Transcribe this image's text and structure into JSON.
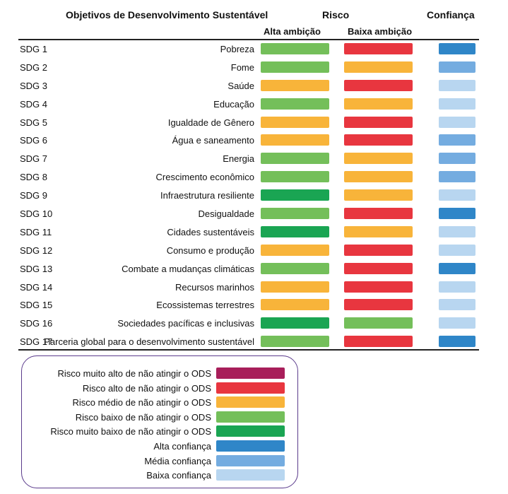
{
  "header": {
    "goals_title": "Objetivos de Desenvolvimento Sustentável",
    "risk_title": "Risco",
    "confidence_title": "Confiança",
    "high_ambition": "Alta ambição",
    "low_ambition": "Baixa ambição"
  },
  "colors": {
    "very_high": "#a81e5a",
    "high": "#e8363f",
    "medium": "#f8b43a",
    "low": "#74bf5a",
    "very_low": "#1aa553",
    "conf_high": "#2f86c8",
    "conf_medium": "#74ace0",
    "conf_low": "#b8d6f0"
  },
  "rows": [
    {
      "code": "SDG 1",
      "goal": "Pobreza",
      "alta": "low",
      "baixa": "high",
      "conf": "conf_high"
    },
    {
      "code": "SDG 2",
      "goal": "Fome",
      "alta": "low",
      "baixa": "medium",
      "conf": "conf_medium"
    },
    {
      "code": "SDG 3",
      "goal": "Saúde",
      "alta": "medium",
      "baixa": "high",
      "conf": "conf_low"
    },
    {
      "code": "SDG 4",
      "goal": "Educação",
      "alta": "low",
      "baixa": "medium",
      "conf": "conf_low"
    },
    {
      "code": "SDG 5",
      "goal": "Igualdade de Gênero",
      "alta": "medium",
      "baixa": "high",
      "conf": "conf_low"
    },
    {
      "code": "SDG 6",
      "goal": "Água e saneamento",
      "alta": "medium",
      "baixa": "high",
      "conf": "conf_medium"
    },
    {
      "code": "SDG 7",
      "goal": "Energia",
      "alta": "low",
      "baixa": "medium",
      "conf": "conf_medium"
    },
    {
      "code": "SDG 8",
      "goal": "Crescimento econômico",
      "alta": "low",
      "baixa": "medium",
      "conf": "conf_medium"
    },
    {
      "code": "SDG 9",
      "goal": "Infraestrutura resiliente",
      "alta": "very_low",
      "baixa": "medium",
      "conf": "conf_low"
    },
    {
      "code": "SDG 10",
      "goal": "Desigualdade",
      "alta": "low",
      "baixa": "high",
      "conf": "conf_high"
    },
    {
      "code": "SDG 11",
      "goal": "Cidades sustentáveis",
      "alta": "very_low",
      "baixa": "medium",
      "conf": "conf_low"
    },
    {
      "code": "SDG 12",
      "goal": "Consumo e produção",
      "alta": "medium",
      "baixa": "high",
      "conf": "conf_low"
    },
    {
      "code": "SDG 13",
      "goal": "Combate a mudanças climáticas",
      "alta": "low",
      "baixa": "high",
      "conf": "conf_high"
    },
    {
      "code": "SDG 14",
      "goal": "Recursos marinhos",
      "alta": "medium",
      "baixa": "high",
      "conf": "conf_low"
    },
    {
      "code": "SDG 15",
      "goal": "Ecossistemas terrestres",
      "alta": "medium",
      "baixa": "high",
      "conf": "conf_low"
    },
    {
      "code": "SDG 16",
      "goal": "Sociedades pacíficas e inclusivas",
      "alta": "very_low",
      "baixa": "low",
      "conf": "conf_low"
    },
    {
      "code": "SDG 17",
      "goal": "Parceria global para o desenvolvimento sustentável",
      "alta": "low",
      "baixa": "high",
      "conf": "conf_high"
    }
  ],
  "legend": [
    {
      "label": "Risco muito alto de não atingir o ODS",
      "color": "very_high"
    },
    {
      "label": "Risco alto de não atingir o ODS",
      "color": "high"
    },
    {
      "label": "Risco médio de não atingir o ODS",
      "color": "medium"
    },
    {
      "label": "Risco baixo de não atingir o ODS",
      "color": "low"
    },
    {
      "label": "Risco muito baixo de não atingir o ODS",
      "color": "very_low"
    },
    {
      "label": "Alta confiança",
      "color": "conf_high"
    },
    {
      "label": "Média confiança",
      "color": "conf_medium"
    },
    {
      "label": "Baixa confiança",
      "color": "conf_low"
    }
  ]
}
